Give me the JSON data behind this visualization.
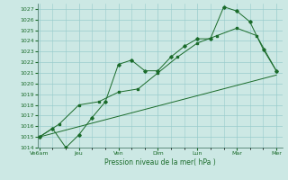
{
  "xlabel": "Pression niveau de la mer( hPa )",
  "background_color": "#cce8e4",
  "grid_color": "#99cccc",
  "line_color": "#1a6b2a",
  "ylim": [
    1014,
    1027.5
  ],
  "yticks": [
    1014,
    1015,
    1016,
    1017,
    1018,
    1019,
    1020,
    1021,
    1022,
    1023,
    1024,
    1025,
    1026,
    1027
  ],
  "xtick_labels": [
    "Ve6am",
    "Jeu",
    "Ven",
    "Dim",
    "Lun",
    "Mar",
    "Mer"
  ],
  "xtick_positions": [
    0,
    1,
    2,
    3,
    4,
    5,
    6
  ],
  "xlim": [
    -0.05,
    6.15
  ],
  "series1_x": [
    0.0,
    0.33,
    0.67,
    1.0,
    1.33,
    1.67,
    2.0,
    2.33,
    2.67,
    3.0,
    3.33,
    3.67,
    4.0,
    4.33,
    4.67,
    5.0,
    5.33,
    5.67,
    6.0
  ],
  "series1_y": [
    1015.0,
    1015.8,
    1014.0,
    1015.2,
    1016.8,
    1018.3,
    1021.8,
    1022.2,
    1021.2,
    1021.2,
    1022.5,
    1023.5,
    1024.2,
    1024.2,
    1027.2,
    1026.8,
    1025.8,
    1023.2,
    1021.2
  ],
  "series2_x": [
    0.0,
    0.5,
    1.0,
    1.5,
    2.0,
    2.5,
    3.0,
    3.5,
    4.0,
    4.5,
    5.0,
    5.5,
    6.0
  ],
  "series2_y": [
    1015.0,
    1016.2,
    1018.0,
    1018.3,
    1019.2,
    1019.5,
    1021.0,
    1022.5,
    1023.8,
    1024.5,
    1025.2,
    1024.5,
    1021.2
  ],
  "series3_x": [
    0.0,
    6.0
  ],
  "series3_y": [
    1015.0,
    1020.8
  ]
}
